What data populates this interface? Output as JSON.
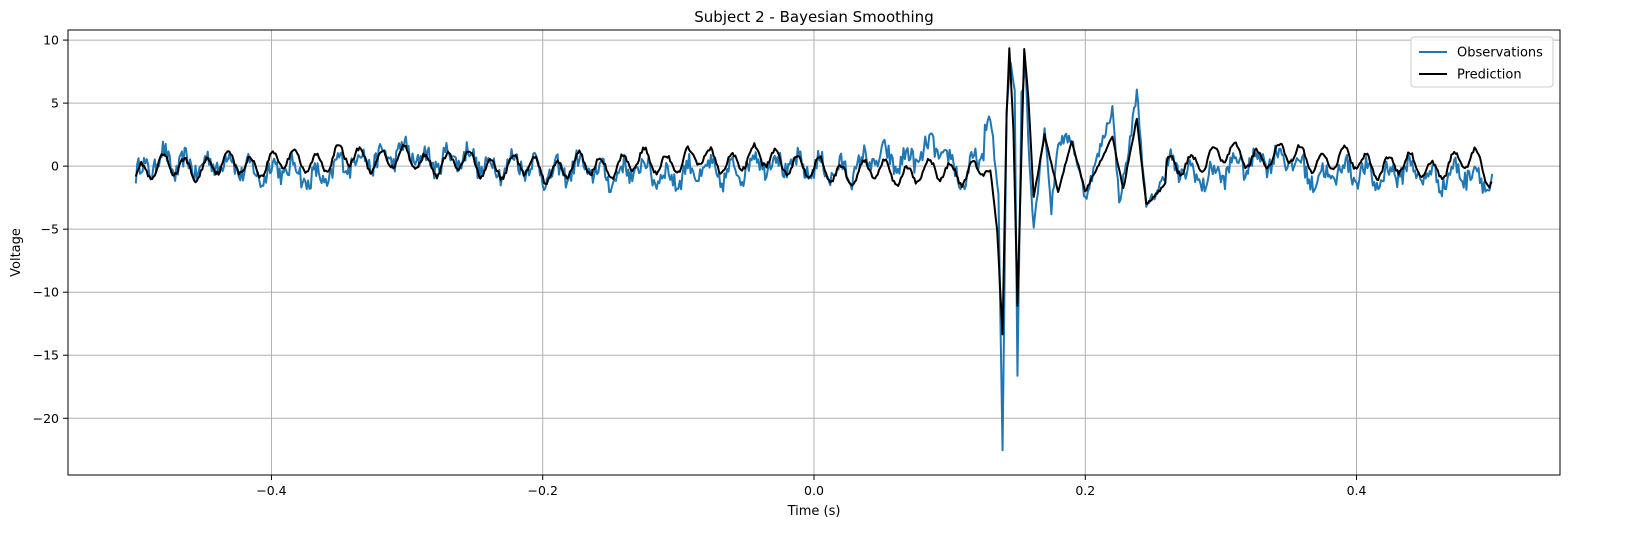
{
  "chart_data": {
    "type": "line",
    "title": "Subject 2 - Bayesian Smoothing",
    "xlabel": "Time (s)",
    "ylabel": "Voltage",
    "xlim": [
      -0.55,
      0.55
    ],
    "ylim": [
      -24.5,
      10.8
    ],
    "xticks": [
      -0.4,
      -0.2,
      0.0,
      0.2,
      0.4
    ],
    "xtick_labels": [
      "−0.4",
      "−0.2",
      "0.0",
      "0.2",
      "0.4"
    ],
    "yticks": [
      10,
      5,
      0,
      -5,
      -10,
      -15,
      -20
    ],
    "ytick_labels": [
      "10",
      "5",
      "0",
      "−5",
      "−10",
      "−15",
      "−20"
    ],
    "grid": true,
    "legend_position": "top-right",
    "x_range": [
      -0.5,
      0.5
    ],
    "series": [
      {
        "name": "Observations",
        "color": "#1f77b4",
        "keypoints": [
          [
            -0.5,
            -1.1
          ],
          [
            -0.49,
            0.6
          ],
          [
            -0.48,
            0.9
          ],
          [
            -0.47,
            -0.8
          ],
          [
            -0.46,
            1.1
          ],
          [
            -0.4,
            -1.1
          ],
          [
            -0.36,
            -2.3
          ],
          [
            -0.33,
            2.4
          ],
          [
            -0.27,
            1.8
          ],
          [
            -0.2,
            -0.8
          ],
          [
            -0.08,
            -1.9
          ],
          [
            -0.02,
            1.5
          ],
          [
            0.0,
            -1.6
          ],
          [
            0.09,
            3.3
          ],
          [
            0.11,
            -2.0
          ],
          [
            0.13,
            4.1
          ],
          [
            0.136,
            -2.5
          ],
          [
            0.139,
            -22.9
          ],
          [
            0.142,
            4.5
          ],
          [
            0.145,
            8.5
          ],
          [
            0.148,
            6.0
          ],
          [
            0.15,
            -16.5
          ],
          [
            0.153,
            5.5
          ],
          [
            0.156,
            8.0
          ],
          [
            0.158,
            2.0
          ],
          [
            0.162,
            -4.8
          ],
          [
            0.17,
            3.3
          ],
          [
            0.175,
            -3.5
          ],
          [
            0.18,
            2.0
          ],
          [
            0.19,
            2.2
          ],
          [
            0.2,
            -2.5
          ],
          [
            0.22,
            4.6
          ],
          [
            0.225,
            -2.8
          ],
          [
            0.232,
            1.2
          ],
          [
            0.238,
            6.0
          ],
          [
            0.245,
            -3.4
          ],
          [
            0.26,
            -0.6
          ],
          [
            0.3,
            -2.3
          ],
          [
            0.33,
            2.9
          ],
          [
            0.37,
            -1.8
          ],
          [
            0.45,
            -1.6
          ],
          [
            0.5,
            -2.8
          ]
        ]
      },
      {
        "name": "Prediction",
        "color": "#000000",
        "keypoints": [
          [
            -0.5,
            -0.9
          ],
          [
            -0.33,
            2.0
          ],
          [
            -0.2,
            -0.7
          ],
          [
            -0.1,
            1.3
          ],
          [
            -0.02,
            1.6
          ],
          [
            0.0,
            -1.2
          ],
          [
            0.1,
            -1.5
          ],
          [
            0.13,
            -0.3
          ],
          [
            0.135,
            -5.0
          ],
          [
            0.139,
            -13.3
          ],
          [
            0.142,
            4.0
          ],
          [
            0.144,
            9.3
          ],
          [
            0.147,
            3.0
          ],
          [
            0.15,
            -11.0
          ],
          [
            0.152,
            -3.0
          ],
          [
            0.155,
            9.4
          ],
          [
            0.158,
            5.5
          ],
          [
            0.162,
            -2.5
          ],
          [
            0.17,
            2.5
          ],
          [
            0.18,
            -2.0
          ],
          [
            0.19,
            2.0
          ],
          [
            0.2,
            -2.0
          ],
          [
            0.22,
            2.3
          ],
          [
            0.228,
            -1.8
          ],
          [
            0.238,
            3.8
          ],
          [
            0.245,
            -3.1
          ],
          [
            0.29,
            2.3
          ],
          [
            0.35,
            2.3
          ],
          [
            0.45,
            -0.5
          ],
          [
            0.49,
            1.2
          ],
          [
            0.5,
            -2.8
          ]
        ]
      }
    ]
  }
}
